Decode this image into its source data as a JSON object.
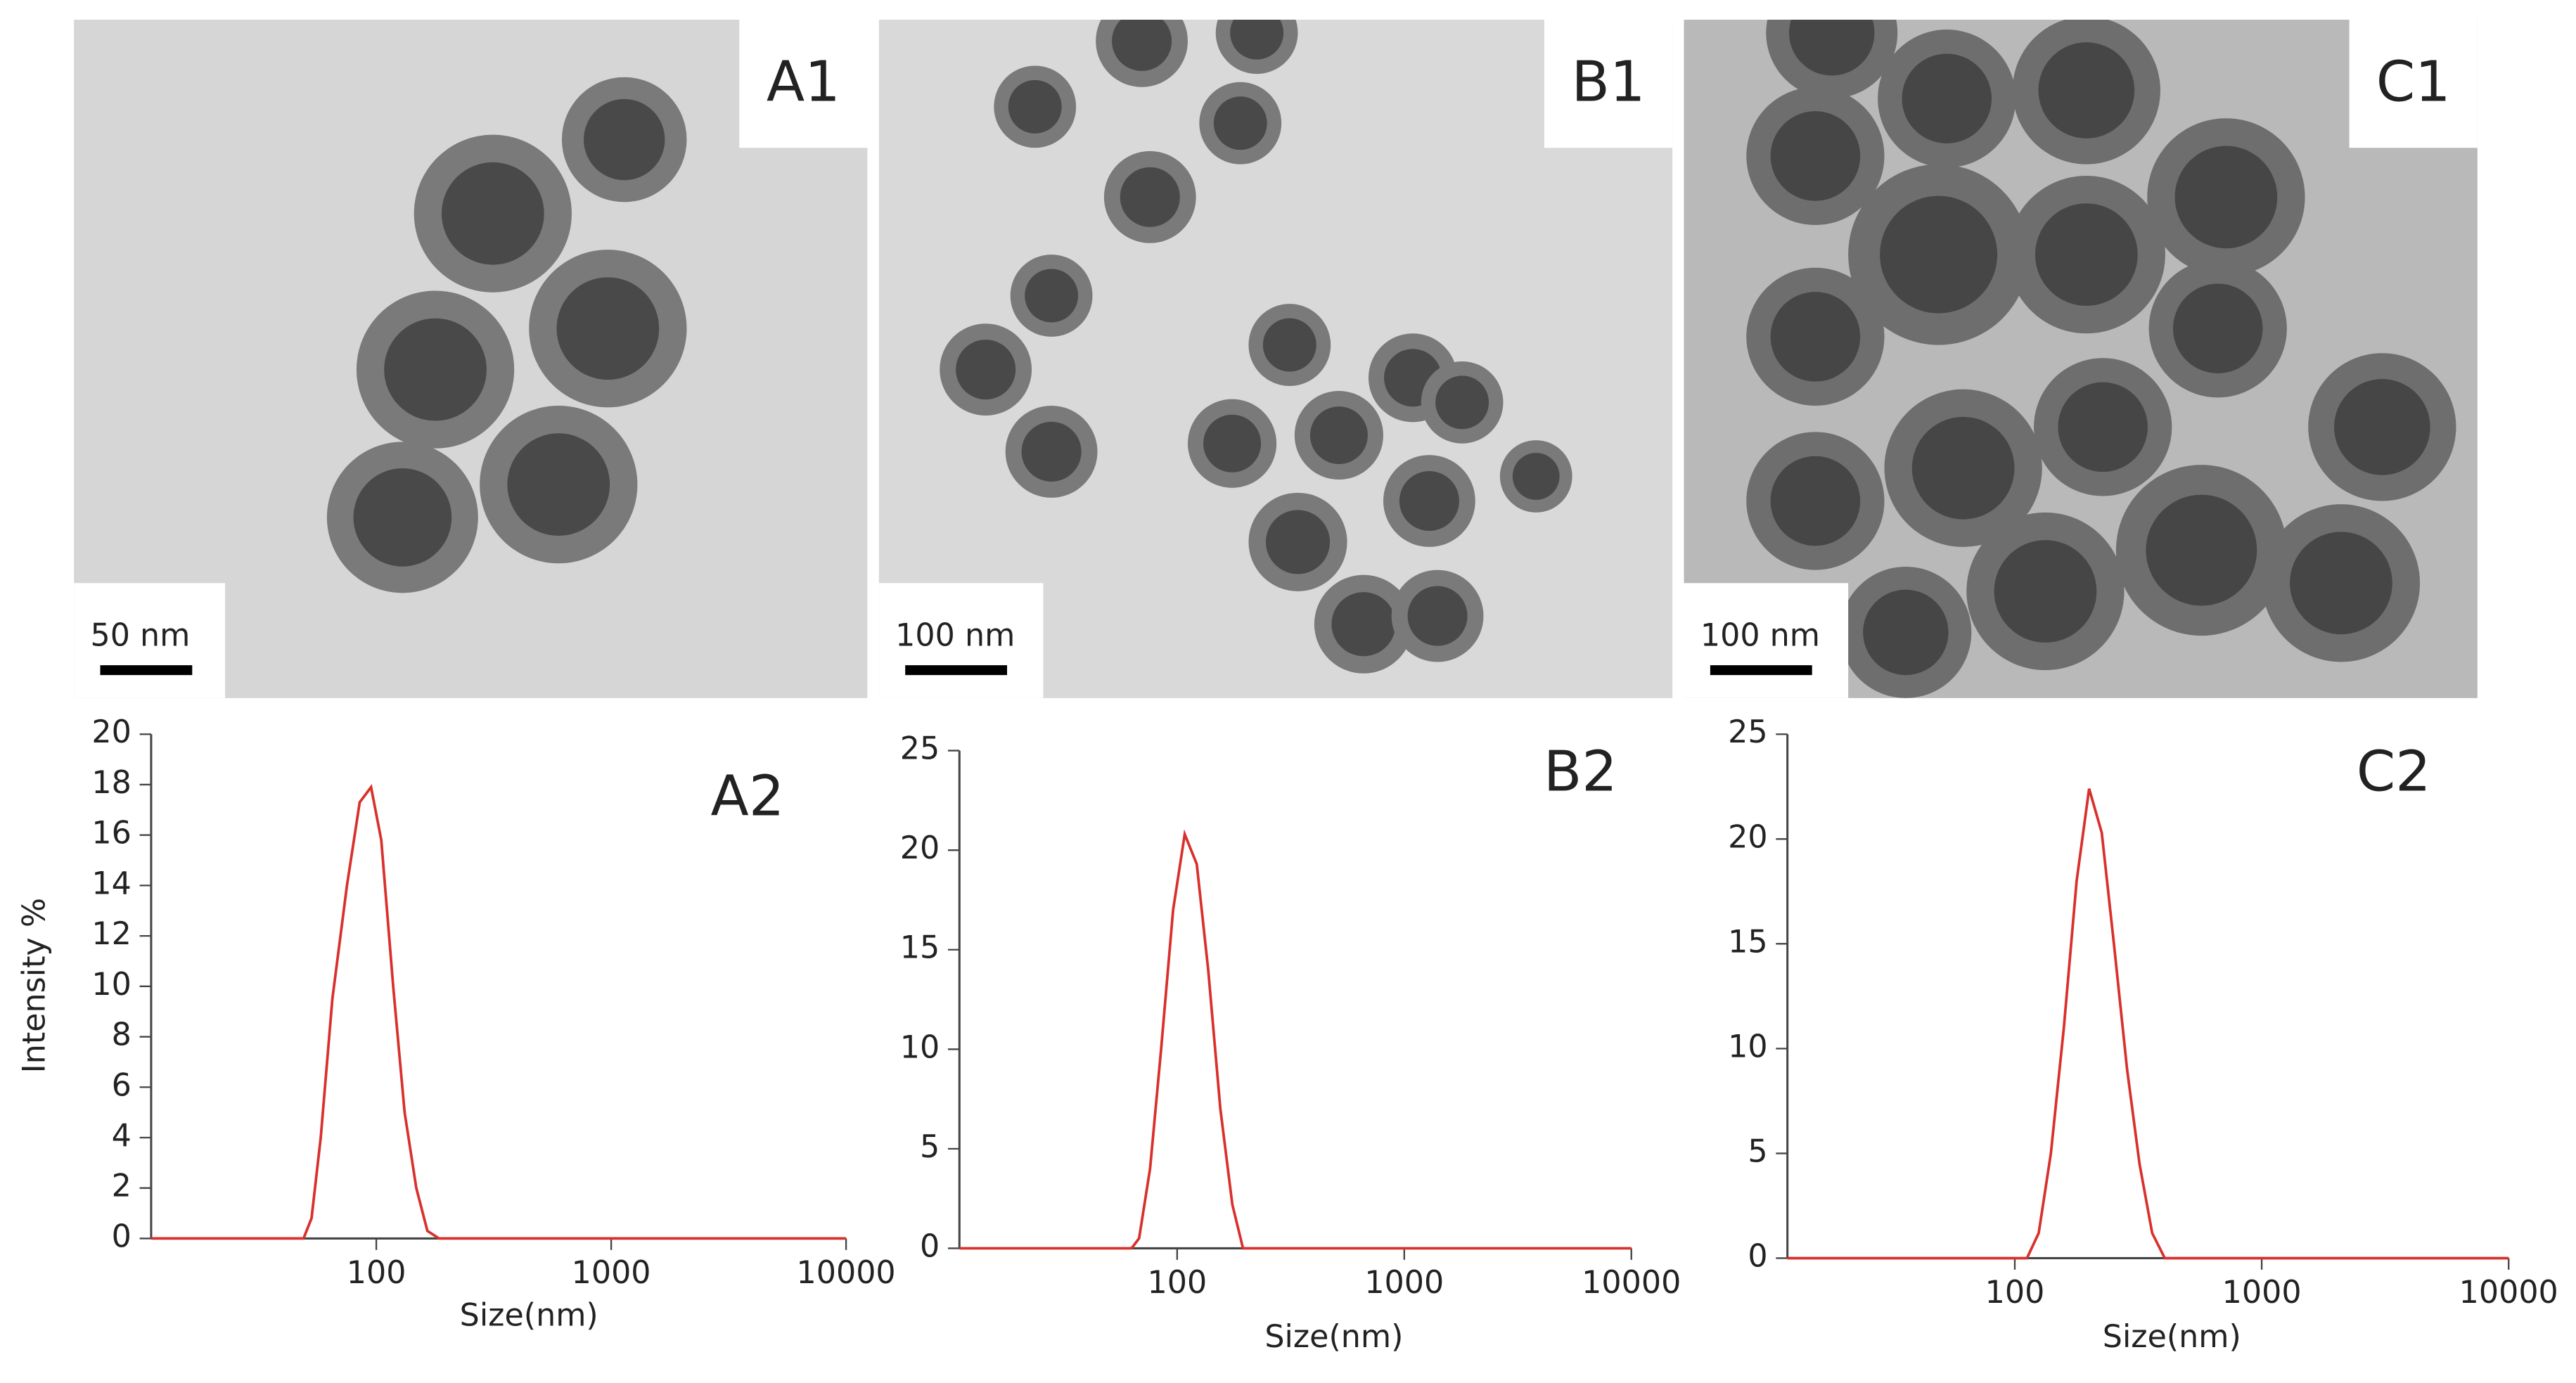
{
  "images": [
    {
      "label": "A1",
      "scale_bar": "50 nm"
    },
    {
      "label": "B1",
      "scale_bar": "100 nm"
    },
    {
      "label": "C1",
      "scale_bar": "100 nm"
    }
  ],
  "chart_data": [
    {
      "type": "line",
      "annotation": "A2",
      "xlabel": "Size(nm)",
      "ylabel": "Intensity %",
      "xscale": "log",
      "xlim": [
        11,
        10000
      ],
      "xticks": [
        100,
        1000,
        10000
      ],
      "ylim": [
        0,
        20
      ],
      "yticks": [
        0,
        2,
        4,
        6,
        8,
        10,
        12,
        14,
        16,
        18,
        20
      ],
      "series": [
        {
          "color": "#d9302c",
          "x": [
            11,
            49,
            53,
            58,
            65,
            75,
            85,
            95,
            105,
            118,
            132,
            148,
            165,
            185,
            10000
          ],
          "values": [
            0,
            0,
            0.8,
            4,
            9.5,
            14,
            17.3,
            17.9,
            15.8,
            10,
            5,
            2,
            0.3,
            0,
            0
          ]
        }
      ]
    },
    {
      "type": "line",
      "annotation": "B2",
      "xlabel": "Size(nm)",
      "xscale": "log",
      "xlim": [
        11,
        10000
      ],
      "xticks": [
        100,
        1000,
        10000
      ],
      "ylim": [
        0,
        25
      ],
      "yticks": [
        0,
        5,
        10,
        15,
        20,
        25
      ],
      "series": [
        {
          "color": "#d9302c",
          "x": [
            11,
            63,
            68,
            76,
            85,
            96,
            108,
            122,
            137,
            155,
            175,
            195,
            10000
          ],
          "values": [
            0,
            0,
            0.5,
            4,
            10,
            17,
            20.8,
            19.3,
            14,
            7,
            2.2,
            0,
            0
          ]
        }
      ]
    },
    {
      "type": "line",
      "annotation": "C2",
      "xlabel": "Size(nm)",
      "xscale": "log",
      "xlim": [
        12,
        10000
      ],
      "xticks": [
        100,
        1000,
        10000
      ],
      "ylim": [
        0,
        25
      ],
      "yticks": [
        0,
        5,
        10,
        15,
        20,
        25
      ],
      "series": [
        {
          "color": "#d9302c",
          "x": [
            12,
            112,
            125,
            140,
            158,
            178,
            200,
            225,
            252,
            285,
            320,
            360,
            405,
            10000
          ],
          "values": [
            0,
            0,
            1.2,
            5,
            11,
            18,
            22.4,
            20.3,
            15,
            9,
            4.5,
            1.2,
            0,
            0
          ]
        }
      ]
    }
  ]
}
